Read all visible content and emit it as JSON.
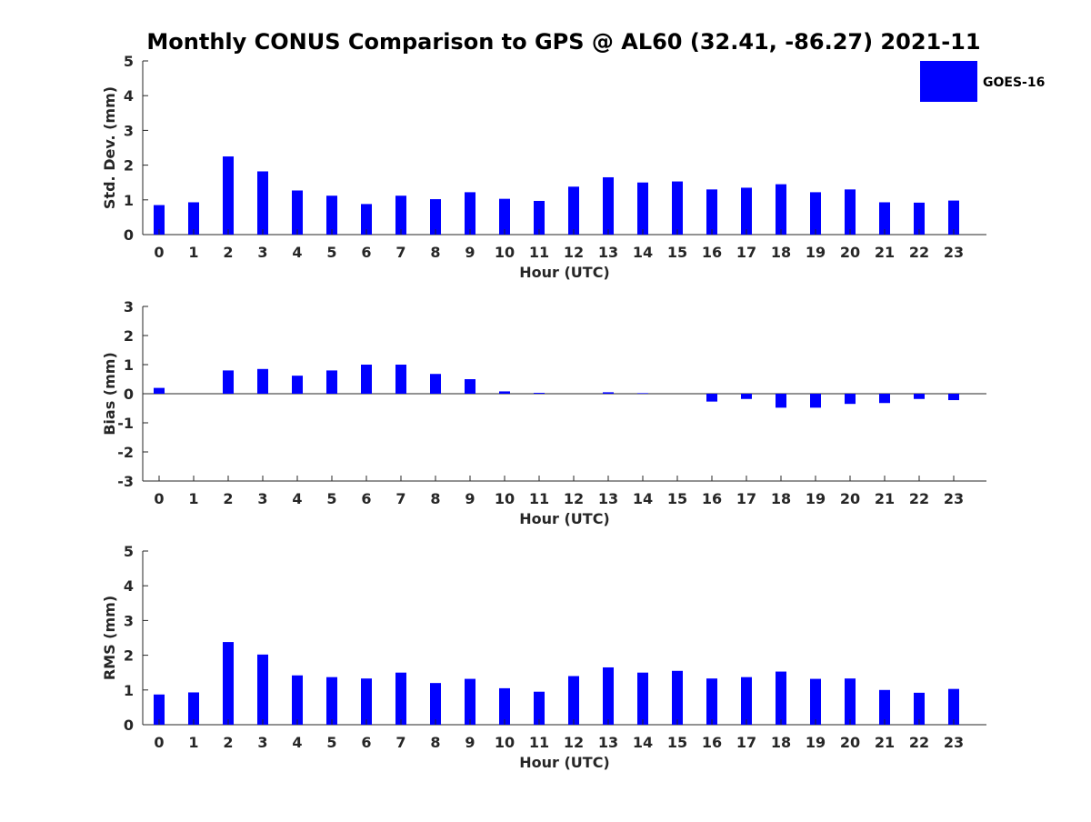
{
  "title": "Monthly CONUS Comparison to GPS @ AL60 (32.41, -86.27) 2021-11",
  "legend": {
    "label": "GOES-16",
    "color": "#0000ff",
    "placement": "top-right"
  },
  "chart_data": [
    {
      "type": "bar",
      "categories": [
        "0",
        "1",
        "2",
        "3",
        "4",
        "5",
        "6",
        "7",
        "8",
        "9",
        "10",
        "11",
        "12",
        "13",
        "14",
        "15",
        "16",
        "17",
        "18",
        "19",
        "20",
        "21",
        "22",
        "23"
      ],
      "series": [
        {
          "name": "GOES-16",
          "values": [
            0.85,
            0.93,
            2.25,
            1.82,
            1.27,
            1.12,
            0.88,
            1.12,
            1.02,
            1.22,
            1.03,
            0.97,
            1.38,
            1.65,
            1.5,
            1.53,
            1.3,
            1.35,
            1.45,
            1.22,
            1.3,
            0.93,
            0.92,
            0.98
          ]
        }
      ],
      "xlabel": "Hour (UTC)",
      "ylabel": "Std. Dev. (mm)",
      "ylim": [
        0,
        5
      ],
      "yticks": [
        "0",
        "1",
        "2",
        "3",
        "4",
        "5"
      ],
      "grid": false,
      "color": "#0000ff"
    },
    {
      "type": "bar",
      "categories": [
        "0",
        "1",
        "2",
        "3",
        "4",
        "5",
        "6",
        "7",
        "8",
        "9",
        "10",
        "11",
        "12",
        "13",
        "14",
        "15",
        "16",
        "17",
        "18",
        "19",
        "20",
        "21",
        "22",
        "23"
      ],
      "series": [
        {
          "name": "GOES-16",
          "values": [
            0.2,
            0.0,
            0.8,
            0.85,
            0.62,
            0.8,
            1.0,
            1.0,
            0.68,
            0.5,
            0.08,
            0.03,
            0.0,
            0.05,
            0.02,
            0.0,
            -0.27,
            -0.18,
            -0.48,
            -0.48,
            -0.35,
            -0.32,
            -0.18,
            -0.22
          ]
        }
      ],
      "xlabel": "Hour (UTC)",
      "ylabel": "Bias (mm)",
      "ylim": [
        -3,
        3
      ],
      "yticks": [
        "-3",
        "-2",
        "-1",
        "0",
        "1",
        "2",
        "3"
      ],
      "grid": false,
      "zero_line": true,
      "color": "#0000ff"
    },
    {
      "type": "bar",
      "categories": [
        "0",
        "1",
        "2",
        "3",
        "4",
        "5",
        "6",
        "7",
        "8",
        "9",
        "10",
        "11",
        "12",
        "13",
        "14",
        "15",
        "16",
        "17",
        "18",
        "19",
        "20",
        "21",
        "22",
        "23"
      ],
      "series": [
        {
          "name": "GOES-16",
          "values": [
            0.87,
            0.93,
            2.38,
            2.02,
            1.42,
            1.37,
            1.33,
            1.5,
            1.2,
            1.32,
            1.05,
            0.95,
            1.4,
            1.65,
            1.5,
            1.55,
            1.33,
            1.37,
            1.53,
            1.32,
            1.33,
            1.0,
            0.92,
            1.03
          ]
        }
      ],
      "xlabel": "Hour (UTC)",
      "ylabel": "RMS (mm)",
      "ylim": [
        0,
        5
      ],
      "yticks": [
        "0",
        "1",
        "2",
        "3",
        "4",
        "5"
      ],
      "grid": false,
      "color": "#0000ff"
    }
  ]
}
